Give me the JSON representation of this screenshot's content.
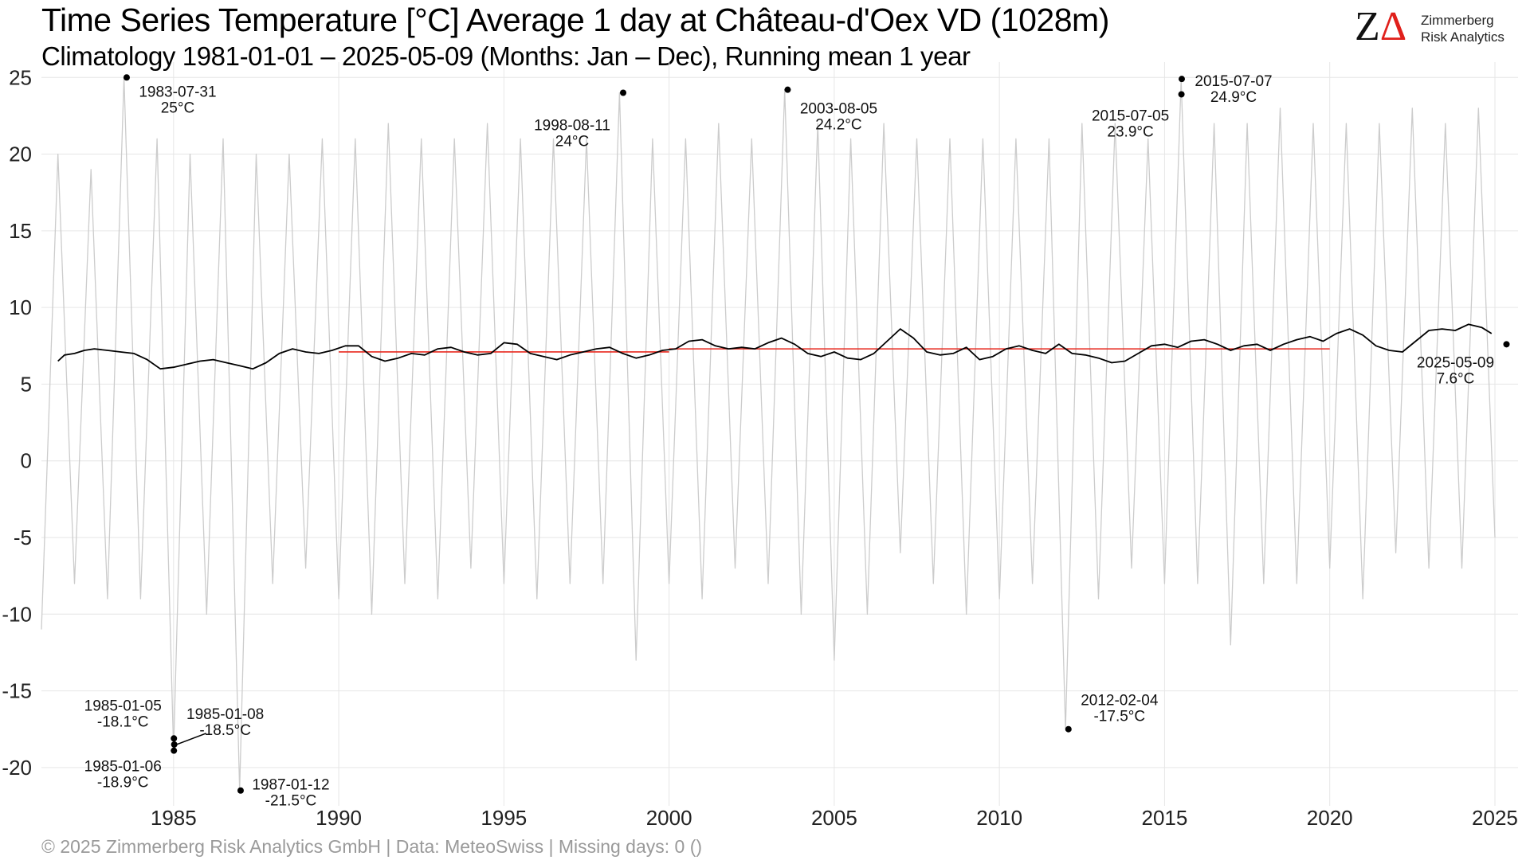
{
  "chart_data": {
    "type": "line",
    "title": "Time Series Temperature [°C] Average 1 day at Château-d'Oex  VD (1028m)",
    "subtitle": "Climatology 1981-01-01 – 2025-05-09 (Months: Jan – Dec), Running mean 1 year",
    "xlabel": "",
    "ylabel": "",
    "xlim": [
      1981.0,
      2025.7
    ],
    "ylim": [
      -22.5,
      26.0
    ],
    "x_ticks": [
      1985,
      1990,
      1995,
      2000,
      2005,
      2010,
      2015,
      2020,
      2025
    ],
    "x_tick_labels": [
      "1985",
      "1990",
      "1995",
      "2000",
      "2005",
      "2010",
      "2015",
      "2020",
      "2025"
    ],
    "y_ticks": [
      -20,
      -15,
      -10,
      -5,
      0,
      5,
      10,
      15,
      20,
      25
    ],
    "y_tick_labels": [
      "-20",
      "-15",
      "-10",
      "-5",
      "0",
      "5",
      "10",
      "15",
      "20",
      "25"
    ],
    "grid": true,
    "colors": {
      "daily": "#cccccc",
      "running_mean": "#000000",
      "decade_mean": "#e8281e",
      "annotation": "#000000",
      "grid": "#e6e6e6"
    },
    "series": [
      {
        "role": "daily",
        "description_note": "",
        "x": [
          1981.0,
          1981.5,
          1982.0,
          1982.5,
          1983.0,
          1983.5,
          1984.0,
          1984.5,
          1985.0,
          1985.5,
          1986.0,
          1986.5,
          1987.0,
          1987.5,
          1988.0,
          1988.5,
          1989.0,
          1989.5,
          1990.0,
          1990.5,
          1991.0,
          1991.5,
          1992.0,
          1992.5,
          1993.0,
          1993.5,
          1994.0,
          1994.5,
          1995.0,
          1995.5,
          1996.0,
          1996.5,
          1997.0,
          1997.5,
          1998.0,
          1998.5,
          1999.0,
          1999.5,
          2000.0,
          2000.5,
          2001.0,
          2001.5,
          2002.0,
          2002.5,
          2003.0,
          2003.5,
          2004.0,
          2004.5,
          2005.0,
          2005.5,
          2006.0,
          2006.5,
          2007.0,
          2007.5,
          2008.0,
          2008.5,
          2009.0,
          2009.5,
          2010.0,
          2010.5,
          2011.0,
          2011.5,
          2012.0,
          2012.5,
          2013.0,
          2013.5,
          2014.0,
          2014.5,
          2015.0,
          2015.5,
          2016.0,
          2016.5,
          2017.0,
          2017.5,
          2018.0,
          2018.5,
          2019.0,
          2019.5,
          2020.0,
          2020.5,
          2021.0,
          2021.5,
          2022.0,
          2022.5,
          2023.0,
          2023.5,
          2024.0,
          2024.5,
          2025.0
        ],
        "y": [
          -11,
          20,
          -8,
          19,
          -9,
          25,
          -9,
          21,
          -18.9,
          20,
          -10,
          21,
          -21.5,
          20,
          -8,
          20,
          -7,
          21,
          -9,
          21,
          -10,
          22,
          -8,
          21,
          -9,
          21,
          -7,
          22,
          -8,
          21,
          -9,
          21,
          -8,
          21,
          -8,
          24,
          -13,
          21,
          -8,
          21,
          -9,
          22,
          -7,
          21,
          -8,
          24.2,
          -10,
          22,
          -13,
          21,
          -10,
          22,
          -6,
          21,
          -8,
          21,
          -10,
          21,
          -9,
          21,
          -8,
          21,
          -17.5,
          22,
          -9,
          22,
          -7,
          21,
          -8,
          24.9,
          -8,
          22,
          -12,
          22,
          -8,
          23,
          -8,
          22,
          -7,
          22,
          -9,
          22,
          -6,
          23,
          -7,
          22,
          -7,
          23,
          -5
        ]
      },
      {
        "role": "running_mean",
        "x": [
          1981.5,
          1981.7,
          1982.0,
          1982.3,
          1982.6,
          1983.0,
          1983.4,
          1983.8,
          1984.2,
          1984.6,
          1985.0,
          1985.4,
          1985.8,
          1986.2,
          1986.6,
          1987.0,
          1987.4,
          1987.8,
          1988.2,
          1988.6,
          1989.0,
          1989.4,
          1989.8,
          1990.2,
          1990.6,
          1991.0,
          1991.4,
          1991.8,
          1992.2,
          1992.6,
          1993.0,
          1993.4,
          1993.8,
          1994.2,
          1994.6,
          1995.0,
          1995.4,
          1995.8,
          1996.2,
          1996.6,
          1997.0,
          1997.4,
          1997.8,
          1998.2,
          1998.6,
          1999.0,
          1999.4,
          1999.8,
          2000.2,
          2000.6,
          2001.0,
          2001.4,
          2001.8,
          2002.2,
          2002.6,
          2003.0,
          2003.4,
          2003.8,
          2004.2,
          2004.6,
          2005.0,
          2005.4,
          2005.8,
          2006.2,
          2006.6,
          2007.0,
          2007.4,
          2007.8,
          2008.2,
          2008.6,
          2009.0,
          2009.4,
          2009.8,
          2010.2,
          2010.6,
          2011.0,
          2011.4,
          2011.8,
          2012.2,
          2012.6,
          2013.0,
          2013.4,
          2013.8,
          2014.2,
          2014.6,
          2015.0,
          2015.4,
          2015.8,
          2016.2,
          2016.6,
          2017.0,
          2017.4,
          2017.8,
          2018.2,
          2018.6,
          2019.0,
          2019.4,
          2019.8,
          2020.2,
          2020.6,
          2021.0,
          2021.4,
          2021.8,
          2022.2,
          2022.6,
          2023.0,
          2023.4,
          2023.8,
          2024.2,
          2024.6,
          2024.9
        ],
        "y": [
          6.5,
          6.9,
          7.0,
          7.2,
          7.3,
          7.2,
          7.1,
          7.0,
          6.6,
          6.0,
          6.1,
          6.3,
          6.5,
          6.6,
          6.4,
          6.2,
          6.0,
          6.4,
          7.0,
          7.3,
          7.1,
          7.0,
          7.2,
          7.5,
          7.5,
          6.8,
          6.5,
          6.7,
          7.0,
          6.9,
          7.3,
          7.4,
          7.1,
          6.9,
          7.0,
          7.7,
          7.6,
          7.0,
          6.8,
          6.6,
          6.9,
          7.1,
          7.3,
          7.4,
          7.0,
          6.7,
          6.9,
          7.2,
          7.3,
          7.8,
          7.9,
          7.5,
          7.3,
          7.4,
          7.3,
          7.7,
          8.0,
          7.6,
          7.0,
          6.8,
          7.1,
          6.7,
          6.6,
          7.0,
          7.8,
          8.6,
          8.0,
          7.1,
          6.9,
          7.0,
          7.4,
          6.6,
          6.8,
          7.3,
          7.5,
          7.2,
          7.0,
          7.6,
          7.0,
          6.9,
          6.7,
          6.4,
          6.5,
          7.0,
          7.5,
          7.6,
          7.4,
          7.8,
          7.9,
          7.6,
          7.2,
          7.5,
          7.6,
          7.2,
          7.6,
          7.9,
          8.1,
          7.8,
          8.3,
          8.6,
          8.2,
          7.5,
          7.2,
          7.1,
          7.8,
          8.5,
          8.6,
          8.5,
          8.9,
          8.7,
          8.3
        ]
      },
      {
        "role": "decade_mean",
        "segments": [
          {
            "x": [
              1990.0,
              2000.0
            ],
            "y": [
              7.1,
              7.1
            ]
          },
          {
            "x": [
              2000.0,
              2020.0
            ],
            "y": [
              7.3,
              7.3
            ]
          }
        ]
      }
    ],
    "annotations": [
      {
        "date": "1983-07-31",
        "x": 1983.58,
        "y": 25.0,
        "value_label": "25°C",
        "side": "right"
      },
      {
        "date": "1998-08-11",
        "x": 1998.61,
        "y": 24.0,
        "value_label": "24°C",
        "side": "left"
      },
      {
        "date": "2003-08-05",
        "x": 2003.59,
        "y": 24.2,
        "value_label": "24.2°C",
        "side": "right"
      },
      {
        "date": "2015-07-05",
        "x": 2015.51,
        "y": 23.9,
        "value_label": "23.9°C",
        "side": "left"
      },
      {
        "date": "2015-07-07",
        "x": 2015.52,
        "y": 24.9,
        "value_label": "24.9°C",
        "side": "right"
      },
      {
        "date": "2025-05-09",
        "x": 2025.35,
        "y": 7.6,
        "value_label": "7.6°C",
        "side": "left"
      },
      {
        "date": "1985-01-05",
        "x": 1985.01,
        "y": -18.1,
        "value_label": "-18.1°C",
        "side": "left"
      },
      {
        "date": "1985-01-08",
        "x": 1985.02,
        "y": -18.5,
        "value_label": "-18.5°C",
        "side": "right"
      },
      {
        "date": "1985-01-06",
        "x": 1985.01,
        "y": -18.9,
        "value_label": "-18.9°C",
        "side": "left"
      },
      {
        "date": "1987-01-12",
        "x": 1987.03,
        "y": -21.5,
        "value_label": "-21.5°C",
        "side": "right"
      },
      {
        "date": "2012-02-04",
        "x": 2012.09,
        "y": -17.5,
        "value_label": "-17.5°C",
        "side": "right"
      }
    ]
  },
  "logo": {
    "mark_z": "Z",
    "mark_delta": "Δ",
    "line1": "Zimmerberg",
    "line2": "Risk Analytics"
  },
  "footer": "©  2025 Zimmerberg Risk Analytics GmbH | Data: MeteoSwiss | Missing days: 0 ()"
}
